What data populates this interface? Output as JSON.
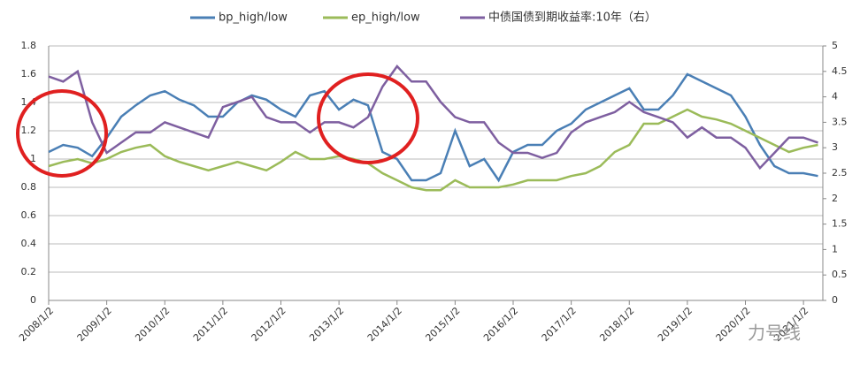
{
  "chart_data": {
    "type": "line",
    "x": [
      "2008/1/2",
      "2008/4/2",
      "2008/7/2",
      "2008/10/2",
      "2009/1/2",
      "2009/4/2",
      "2009/7/2",
      "2009/10/2",
      "2010/1/2",
      "2010/4/2",
      "2010/7/2",
      "2010/10/2",
      "2011/1/2",
      "2011/4/2",
      "2011/7/2",
      "2011/10/2",
      "2012/1/2",
      "2012/4/2",
      "2012/7/2",
      "2012/10/2",
      "2013/1/2",
      "2013/4/2",
      "2013/7/2",
      "2013/10/2",
      "2014/1/2",
      "2014/4/2",
      "2014/7/2",
      "2014/10/2",
      "2015/1/2",
      "2015/4/2",
      "2015/7/2",
      "2015/10/2",
      "2016/1/2",
      "2016/4/2",
      "2016/7/2",
      "2016/10/2",
      "2017/1/2",
      "2017/4/2",
      "2017/7/2",
      "2017/10/2",
      "2018/1/2",
      "2018/4/2",
      "2018/7/2",
      "2018/10/2",
      "2019/1/2",
      "2019/4/2",
      "2019/7/2",
      "2019/10/2",
      "2020/1/2",
      "2020/4/2",
      "2020/7/2",
      "2020/10/2",
      "2021/1/2",
      "2021/4/2"
    ],
    "series": [
      {
        "name": "bp_high/low",
        "color": "#4a7fb5",
        "values": [
          1.05,
          1.1,
          1.08,
          1.02,
          1.15,
          1.3,
          1.38,
          1.45,
          1.48,
          1.42,
          1.38,
          1.3,
          1.3,
          1.4,
          1.45,
          1.42,
          1.35,
          1.3,
          1.45,
          1.48,
          1.35,
          1.42,
          1.38,
          1.05,
          1.0,
          0.85,
          0.85,
          0.9,
          1.2,
          0.95,
          1.0,
          0.85,
          1.05,
          1.1,
          1.1,
          1.2,
          1.25,
          1.35,
          1.4,
          1.45,
          1.5,
          1.35,
          1.35,
          1.45,
          1.6,
          1.55,
          1.5,
          1.45,
          1.3,
          1.1,
          0.95,
          0.9,
          0.9,
          0.88
        ]
      },
      {
        "name": "ep_high/low",
        "color": "#9bbb59",
        "values": [
          0.95,
          0.98,
          1.0,
          0.97,
          1.0,
          1.05,
          1.08,
          1.1,
          1.02,
          0.98,
          0.95,
          0.92,
          0.95,
          0.98,
          0.95,
          0.92,
          0.98,
          1.05,
          1.0,
          1.0,
          1.02,
          1.0,
          0.97,
          0.9,
          0.85,
          0.8,
          0.78,
          0.78,
          0.85,
          0.8,
          0.8,
          0.8,
          0.82,
          0.85,
          0.85,
          0.85,
          0.88,
          0.9,
          0.95,
          1.05,
          1.1,
          1.25,
          1.25,
          1.3,
          1.35,
          1.3,
          1.28,
          1.25,
          1.2,
          1.15,
          1.1,
          1.05,
          1.08,
          1.1
        ]
      },
      {
        "name": "中债国债到期收益率:10年（右）",
        "color": "#7e5fa0",
        "axis": "y2",
        "values": [
          4.4,
          4.3,
          4.5,
          3.5,
          2.9,
          3.1,
          3.3,
          3.3,
          3.5,
          3.4,
          3.3,
          3.2,
          3.8,
          3.9,
          4.0,
          3.6,
          3.5,
          3.5,
          3.3,
          3.5,
          3.5,
          3.4,
          3.6,
          4.2,
          4.6,
          4.3,
          4.3,
          3.9,
          3.6,
          3.5,
          3.5,
          3.1,
          2.9,
          2.9,
          2.8,
          2.9,
          3.3,
          3.5,
          3.6,
          3.7,
          3.9,
          3.7,
          3.6,
          3.5,
          3.2,
          3.4,
          3.2,
          3.2,
          3.0,
          2.6,
          2.9,
          3.2,
          3.2,
          3.1
        ]
      }
    ],
    "xlim": [
      "2008/1/2",
      "2021/5/2"
    ],
    "xticks": [
      "2008/1/2",
      "2009/1/2",
      "2010/1/2",
      "2011/1/2",
      "2012/1/2",
      "2013/1/2",
      "2014/1/2",
      "2015/1/2",
      "2016/1/2",
      "2017/1/2",
      "2018/1/2",
      "2019/1/2",
      "2020/1/2",
      "2021/1/2"
    ],
    "ylim": [
      0,
      1.8
    ],
    "yticks": [
      0,
      0.2,
      0.4,
      0.6,
      0.8,
      1,
      1.2,
      1.4,
      1.6,
      1.8
    ],
    "y2lim": [
      0,
      5
    ],
    "y2ticks": [
      0,
      0.5,
      1,
      1.5,
      2,
      2.5,
      3,
      3.5,
      4,
      4.5,
      5
    ],
    "grid": true,
    "legend": "top",
    "watermark": "力号线"
  }
}
